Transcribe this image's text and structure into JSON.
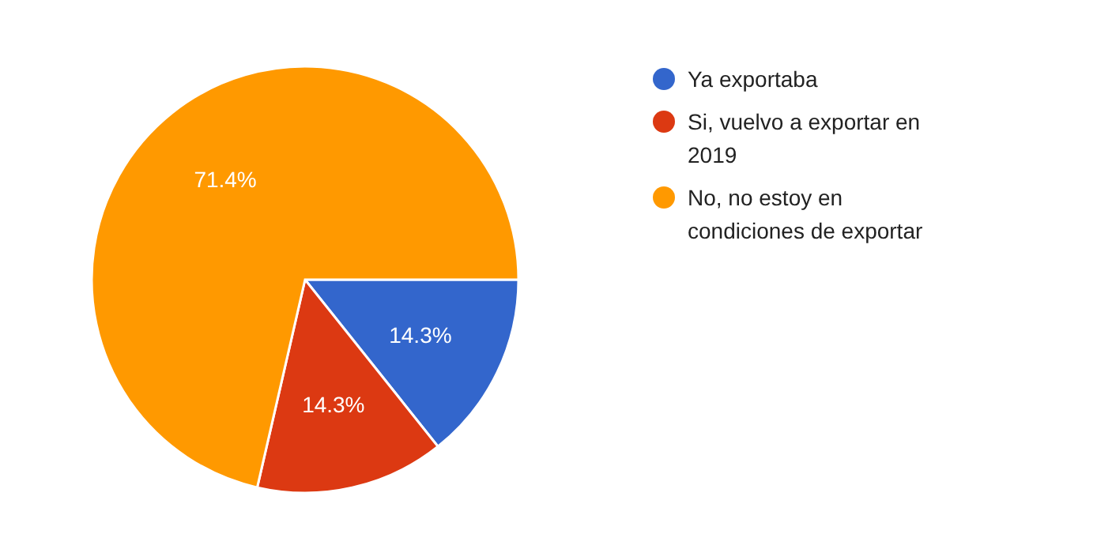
{
  "chart_data": {
    "type": "pie",
    "categories": [
      "Ya exportaba",
      "Si, vuelvo a exportar en 2019",
      "No, no estoy en condiciones de exportar"
    ],
    "values": [
      14.3,
      14.3,
      71.4
    ],
    "colors": [
      "#3366cc",
      "#dc3912",
      "#ff9900"
    ],
    "value_labels": [
      "14.3%",
      "14.3%",
      "71.4%"
    ],
    "legend": "right"
  }
}
